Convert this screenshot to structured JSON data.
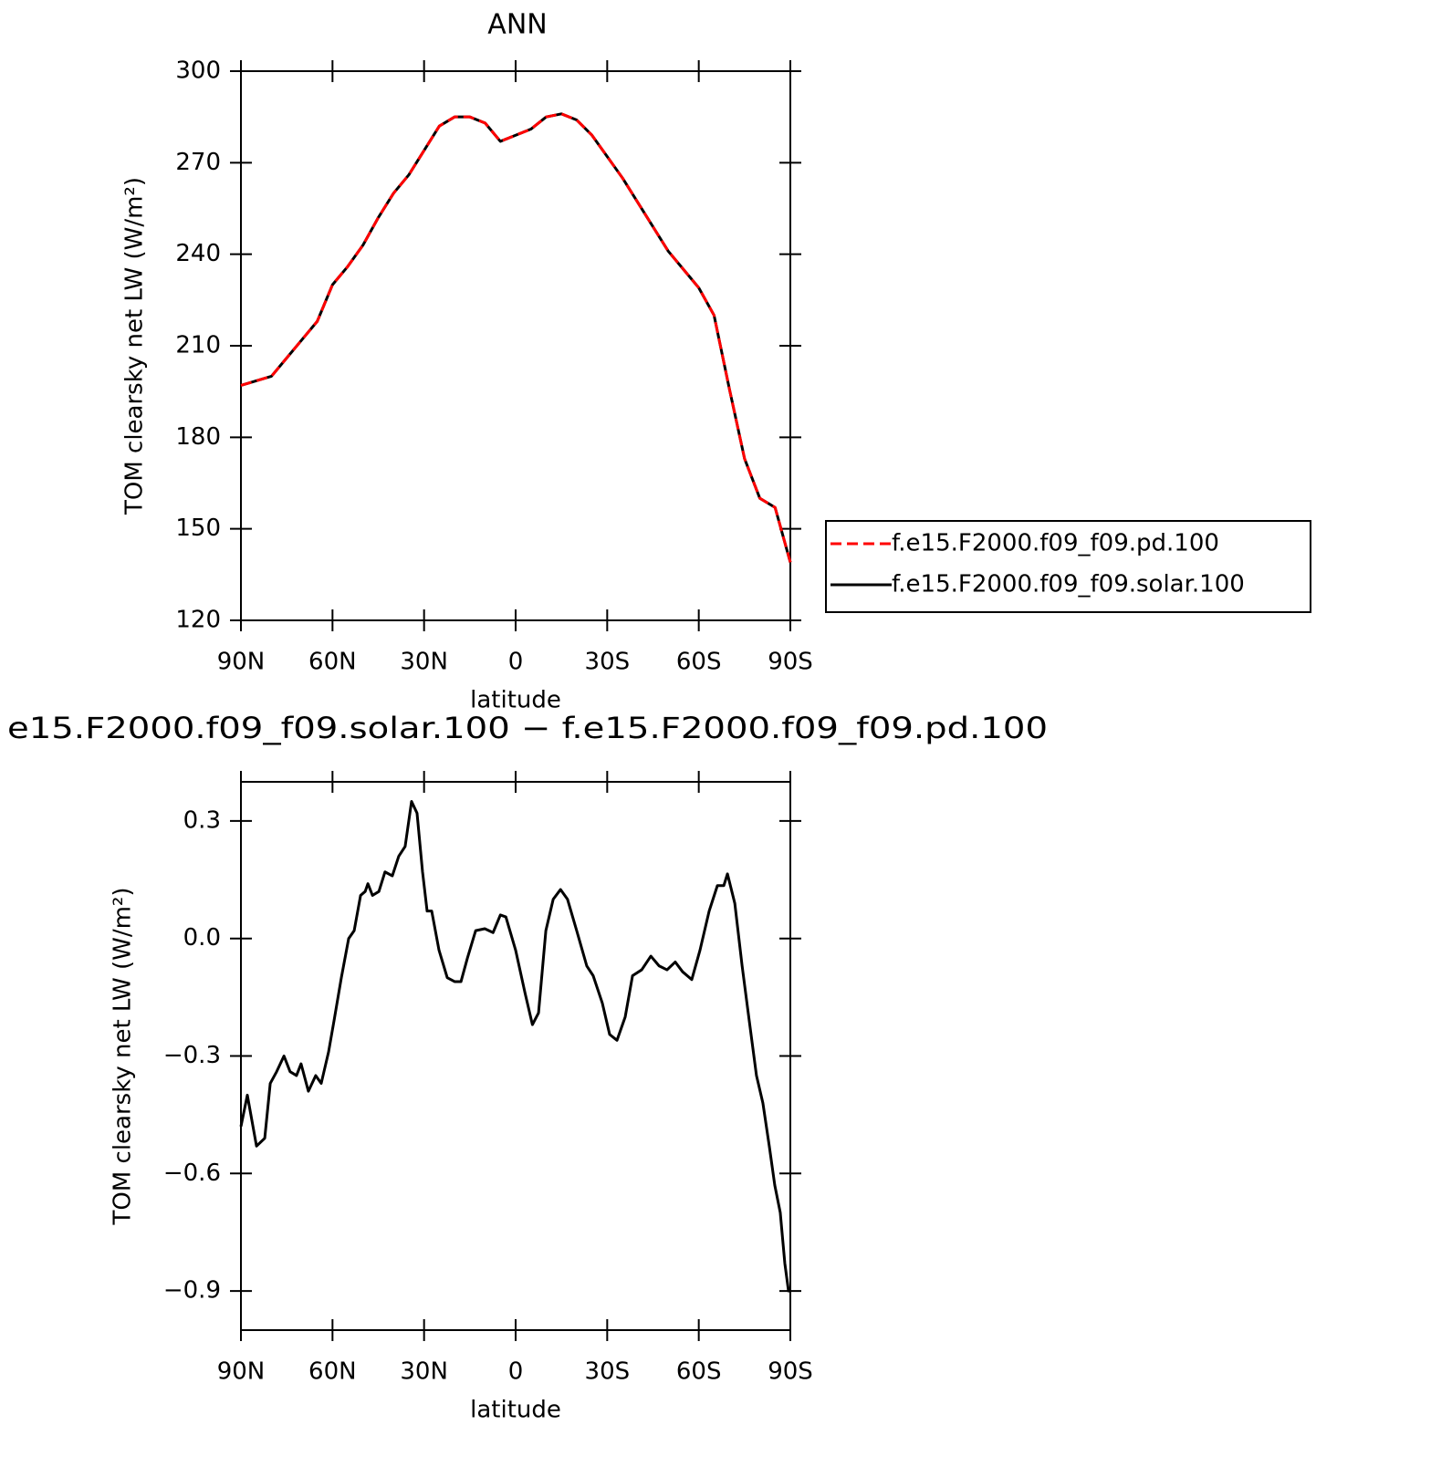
{
  "chart_data": [
    {
      "type": "line",
      "title": "ANN",
      "xlabel": "latitude",
      "ylabel": "TOM clearsky net LW (W/m²)",
      "x": [
        90,
        85,
        80,
        75,
        70,
        65,
        60,
        55,
        50,
        45,
        40,
        35,
        30,
        25,
        20,
        15,
        10,
        5,
        0,
        -5,
        -10,
        -15,
        -20,
        -25,
        -30,
        -35,
        -40,
        -45,
        -50,
        -55,
        -60,
        -65,
        -70,
        -75,
        -80,
        -85,
        -90
      ],
      "series": [
        {
          "name": "f.e15.F2000.f09_f09.pd.100",
          "color": "#ff0000",
          "dash": true,
          "values": [
            197,
            198.5,
            200,
            206,
            212,
            218,
            230,
            236,
            243,
            252,
            260,
            266,
            274,
            282,
            285,
            285,
            283,
            277,
            279,
            281,
            285,
            286,
            284,
            279,
            272,
            265,
            257,
            249,
            241,
            235,
            229,
            220,
            196,
            173,
            160,
            157,
            139
          ]
        },
        {
          "name": "f.e15.F2000.f09_f09.solar.100",
          "color": "#000000",
          "dash": false,
          "values": [
            197,
            198.5,
            200,
            206,
            212,
            218,
            230,
            236,
            243,
            252,
            260,
            266,
            274,
            282,
            285,
            285,
            283,
            277,
            279,
            281,
            285,
            286,
            284,
            279,
            272,
            265,
            257,
            249,
            241,
            235,
            229,
            220,
            196,
            173,
            160,
            157,
            139
          ]
        }
      ],
      "xlim": [
        90,
        -90
      ],
      "xticks": [
        {
          "value": 90,
          "label": "90N"
        },
        {
          "value": 60,
          "label": "60N"
        },
        {
          "value": 30,
          "label": "30N"
        },
        0,
        {
          "value": -30,
          "label": "30S"
        },
        {
          "value": -60,
          "label": "60S"
        },
        {
          "value": -90,
          "label": "90S"
        }
      ],
      "ylim": [
        120,
        300
      ],
      "yticks": [
        120,
        150,
        180,
        210,
        240,
        270,
        300
      ],
      "legend": "right"
    },
    {
      "type": "line",
      "title": "e15.F2000.f09_f09.solar.100 − f.e15.F2000.f09_f09.pd.100",
      "xlabel": "latitude",
      "ylabel": "TOM clearsky net LW (W/m²)",
      "x": [
        90,
        87.9,
        84.9,
        82.2,
        80.4,
        78.3,
        75.9,
        73.9,
        71.8,
        70.3,
        67.9,
        65.5,
        63.7,
        61.3,
        59.5,
        57.1,
        54.7,
        52.9,
        50.8,
        49.3,
        48.4,
        46.9,
        44.8,
        42.8,
        40.4,
        38.3,
        36.2,
        34.1,
        32.3,
        30.5,
        29,
        27.5,
        25.1,
        22.4,
        20,
        17.9,
        15.8,
        13.1,
        10.1,
        7.4,
        5,
        3.2,
        0,
        -3.1,
        -5.5,
        -7.5,
        -9.9,
        -12.3,
        -14.7,
        -17,
        -20,
        -23.3,
        -25.4,
        -28.4,
        -30.8,
        -33.2,
        -35.9,
        -38.3,
        -41.3,
        -44.3,
        -47,
        -49.6,
        -52.3,
        -54.7,
        -57.7,
        -60.4,
        -63.4,
        -66.1,
        -68.2,
        -69.4,
        -71.8,
        -74.2,
        -76.2,
        -78.9,
        -81,
        -83.1,
        -84.9,
        -86.7,
        -88.2,
        -89.4,
        -90
      ],
      "series": [
        {
          "color": "#000000",
          "dash": false,
          "values": [
            -0.48,
            -0.4,
            -0.53,
            -0.51,
            -0.37,
            -0.34,
            -0.3,
            -0.34,
            -0.35,
            -0.32,
            -0.39,
            -0.35,
            -0.37,
            -0.29,
            -0.21,
            -0.1,
            0,
            0.02,
            0.11,
            0.12,
            0.14,
            0.11,
            0.12,
            0.17,
            0.16,
            0.21,
            0.235,
            0.35,
            0.32,
            0.17,
            0.07,
            0.07,
            -0.03,
            -0.1,
            -0.11,
            -0.11,
            -0.05,
            0.02,
            0.025,
            0.015,
            0.06,
            0.055,
            -0.03,
            -0.14,
            -0.22,
            -0.19,
            0.02,
            0.1,
            0.125,
            0.1,
            0.02,
            -0.07,
            -0.095,
            -0.165,
            -0.245,
            -0.26,
            -0.2,
            -0.095,
            -0.08,
            -0.045,
            -0.07,
            -0.08,
            -0.06,
            -0.085,
            -0.105,
            -0.03,
            0.07,
            0.135,
            0.135,
            0.165,
            0.09,
            -0.07,
            -0.19,
            -0.35,
            -0.42,
            -0.53,
            -0.63,
            -0.7,
            -0.83,
            -0.9,
            -0.9
          ]
        }
      ],
      "xlim": [
        90,
        -90
      ],
      "xticks": [
        {
          "value": 90,
          "label": "90N"
        },
        {
          "value": 60,
          "label": "60N"
        },
        {
          "value": 30,
          "label": "30N"
        },
        0,
        {
          "value": -30,
          "label": "30S"
        },
        {
          "value": -60,
          "label": "60S"
        },
        {
          "value": -90,
          "label": "90S"
        }
      ],
      "ylim": [
        -1.0,
        0.4
      ],
      "yticks": [
        {
          "value": -0.9,
          "label": "−0.9"
        },
        {
          "value": -0.6,
          "label": "−0.6"
        },
        {
          "value": -0.3,
          "label": "−0.3"
        },
        {
          "value": 0,
          "label": "0.0"
        },
        {
          "value": 0.3,
          "label": "0.3"
        }
      ]
    }
  ]
}
